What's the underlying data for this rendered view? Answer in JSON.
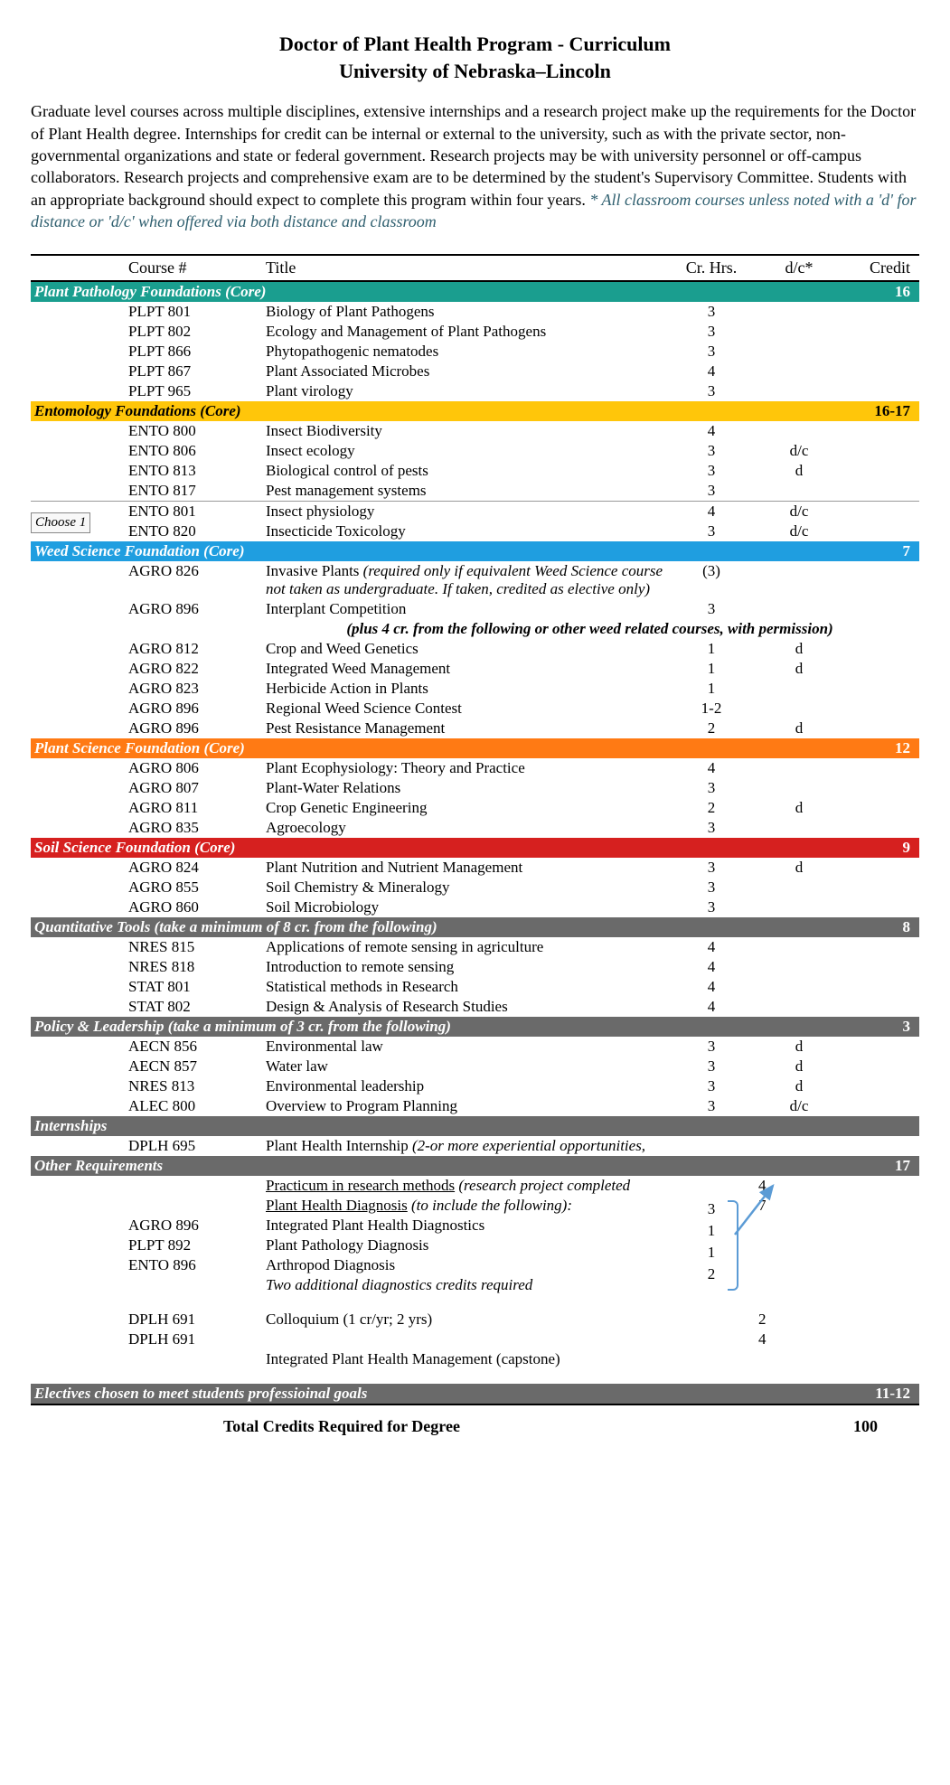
{
  "title_line1": "Doctor of Plant Health Program - Curriculum",
  "title_line2": "University of Nebraska–Lincoln",
  "intro_main": "Graduate level courses across multiple disciplines, extensive internships and a research project make up the requirements for the Doctor of Plant Health degree.  Internships for credit can be internal or external to the university, such as with the private sector, non-governmental organizations and state or federal government.  Research projects may be with university personnel or off-campus collaborators.  Research projects and comprehensive exam are to be determined by the student's Supervisory Committee.  Students with an appropriate background should expect to complete this program within four years.  ",
  "intro_note": "* All classroom courses unless noted with a 'd' for distance or 'd/c' when offered via both distance and classroom",
  "headers": {
    "course": "Course #",
    "title": "Title",
    "crhrs": "Cr. Hrs.",
    "dc": "d/c*",
    "credit": "Credit"
  },
  "sec_plantpath": {
    "label": "Plant Pathology Foundations (Core)",
    "credit": "16",
    "bg": "#1a9e8f",
    "fg": "#ffffff"
  },
  "plantpath": [
    {
      "no": "PLPT 801",
      "title": "Biology of Plant Pathogens",
      "ch": "3",
      "dc": ""
    },
    {
      "no": "PLPT 802",
      "title": "Ecology and Management of Plant Pathogens",
      "ch": "3",
      "dc": ""
    },
    {
      "no": "PLPT 866",
      "title": "Phytopathogenic nematodes",
      "ch": "3",
      "dc": ""
    },
    {
      "no": "PLPT 867",
      "title": "Plant Associated Microbes",
      "ch": "4",
      "dc": ""
    },
    {
      "no": "PLPT 965",
      "title": "Plant virology",
      "ch": "3",
      "dc": ""
    }
  ],
  "sec_ento": {
    "label": "Entomology Foundations (Core)",
    "credit": "16-17",
    "bg": "#ffc60a",
    "fg": "#000000"
  },
  "ento_a": [
    {
      "no": "ENTO 800",
      "title": "Insect Biodiversity",
      "ch": "4",
      "dc": ""
    },
    {
      "no": "ENTO 806",
      "title": "Insect ecology",
      "ch": "3",
      "dc": "d/c"
    },
    {
      "no": "ENTO 813",
      "title": "Biological control of pests",
      "ch": "3",
      "dc": "d"
    },
    {
      "no": "ENTO 817",
      "title": "Pest management systems",
      "ch": "3",
      "dc": ""
    }
  ],
  "choose1": "Choose 1",
  "ento_b": [
    {
      "no": "ENTO 801",
      "title": "Insect physiology",
      "ch": "4",
      "dc": "d/c"
    },
    {
      "no": "ENTO 820",
      "title": "Insecticide Toxicology",
      "ch": "3",
      "dc": "d/c"
    }
  ],
  "sec_weed": {
    "label": "Weed Science Foundation (Core)",
    "credit": "7",
    "bg": "#1f9ee0",
    "fg": "#ffffff"
  },
  "weed_a_no": "AGRO 826",
  "weed_a_title": "Invasive Plants ",
  "weed_a_note": "(required only if equivalent Weed Science course not taken as undergraduate.  If taken, credited as elective only)",
  "weed_a_ch": "(3)",
  "weed_b": {
    "no": "AGRO 896",
    "title": "Interplant Competition",
    "ch": "3",
    "dc": ""
  },
  "weed_sub": "(plus 4 cr. from the following or other weed related courses, with permission)",
  "weed_c": [
    {
      "no": "AGRO 812",
      "title": "Crop and Weed Genetics",
      "ch": "1",
      "dc": "d"
    },
    {
      "no": "AGRO 822",
      "title": "Integrated Weed Management",
      "ch": "1",
      "dc": "d"
    },
    {
      "no": "AGRO 823",
      "title": "Herbicide Action in Plants",
      "ch": "1",
      "dc": ""
    },
    {
      "no": "AGRO 896",
      "title": "Regional Weed Science Contest",
      "ch": "1-2",
      "dc": ""
    },
    {
      "no": "AGRO 896",
      "title": "Pest Resistance Management",
      "ch": "2",
      "dc": "d"
    }
  ],
  "sec_plantsci": {
    "label": "Plant Science Foundation (Core)",
    "credit": "12",
    "bg": "#ff7a14",
    "fg": "#ffffff"
  },
  "plantsci": [
    {
      "no": "AGRO 806",
      "title": "Plant Ecophysiology: Theory and Practice",
      "ch": "4",
      "dc": ""
    },
    {
      "no": "AGRO 807",
      "title": "Plant-Water Relations",
      "ch": "3",
      "dc": ""
    },
    {
      "no": "AGRO 811",
      "title": "Crop Genetic Engineering",
      "ch": "2",
      "dc": "d"
    },
    {
      "no": "AGRO 835",
      "title": "Agroecology",
      "ch": "3",
      "dc": ""
    }
  ],
  "sec_soil": {
    "label": "Soil Science Foundation (Core)",
    "credit": "9",
    "bg": "#d6201f",
    "fg": "#ffffff"
  },
  "soil": [
    {
      "no": "AGRO 824",
      "title": "Plant Nutrition and Nutrient Management",
      "ch": "3",
      "dc": "d"
    },
    {
      "no": "AGRO 855",
      "title": "Soil Chemistry & Mineralogy",
      "ch": "3",
      "dc": ""
    },
    {
      "no": "AGRO 860",
      "title": "Soil Microbiology",
      "ch": "3",
      "dc": ""
    }
  ],
  "sec_quant": {
    "label": "Quantitative Tools (take a minimum of 8 cr. from the following)",
    "credit": "8",
    "bg": "#6a6a6a",
    "fg": "#ffffff"
  },
  "quant": [
    {
      "no": "NRES 815",
      "title": "Applications of remote sensing in agriculture",
      "ch": "4",
      "dc": ""
    },
    {
      "no": "NRES 818",
      "title": "Introduction to remote sensing",
      "ch": "4",
      "dc": ""
    },
    {
      "no": "STAT 801",
      "title": "Statistical methods in Research",
      "ch": "4",
      "dc": ""
    },
    {
      "no": "STAT 802",
      "title": "Design & Analysis of Research Studies",
      "ch": "4",
      "dc": ""
    }
  ],
  "sec_policy": {
    "label": "Policy & Leadership (take a minimum of 3 cr. from the following)",
    "credit": "3",
    "bg": "#6a6a6a",
    "fg": "#ffffff"
  },
  "policy": [
    {
      "no": "AECN 856",
      "title": "Environmental law",
      "ch": "3",
      "dc": "d"
    },
    {
      "no": "AECN 857",
      "title": "Water law",
      "ch": "3",
      "dc": "d"
    },
    {
      "no": "NRES 813",
      "title": "Environmental leadership",
      "ch": "3",
      "dc": "d"
    },
    {
      "no": "ALEC 800",
      "title": "Overview to Program Planning",
      "ch": "3",
      "dc": "d/c"
    }
  ],
  "sec_intern": {
    "label": "Internships",
    "credit": "",
    "bg": "#6a6a6a",
    "fg": "#ffffff"
  },
  "intern_no": "DPLH 695",
  "intern_title": "Plant Health Internship ",
  "intern_note": "(2-or more experiential opportunities,",
  "sec_other": {
    "label": "Other Requirements",
    "credit": "17",
    "bg": "#6a6a6a",
    "fg": "#ffffff"
  },
  "other_practicum_u": "Practicum in research methods",
  "other_practicum_n": " (research project completed",
  "other_practicum_cr": "4",
  "other_phd_u": "Plant Health Diagnosis",
  "other_phd_n": " (to include the following):",
  "other_phd_cr": "7",
  "other_rows": [
    {
      "no": "AGRO 896",
      "title": "Integrated Plant Health Diagnostics",
      "ch": "3"
    },
    {
      "no": "PLPT 892",
      "title": "Plant Pathology Diagnosis",
      "ch": "1"
    },
    {
      "no": "ENTO 896",
      "title": "Arthropod Diagnosis",
      "ch": "1"
    }
  ],
  "other_two": "Two additional diagnostics credits required",
  "other_two_ch": "2",
  "colloq": {
    "no": "DPLH 691",
    "title": "Colloquium (1 cr/yr; 2 yrs)",
    "cr": "2"
  },
  "colloq2": {
    "no": "DPLH 691",
    "title": "",
    "cr": "4"
  },
  "capstone": "Integrated Plant Health Management (capstone)",
  "sec_elect": {
    "label": "Electives chosen to meet students professioinal goals",
    "credit": "11-12",
    "bg": "#6a6a6a",
    "fg": "#ffffff"
  },
  "total_label": "Total Credits Required for Degree",
  "total_value": "100"
}
